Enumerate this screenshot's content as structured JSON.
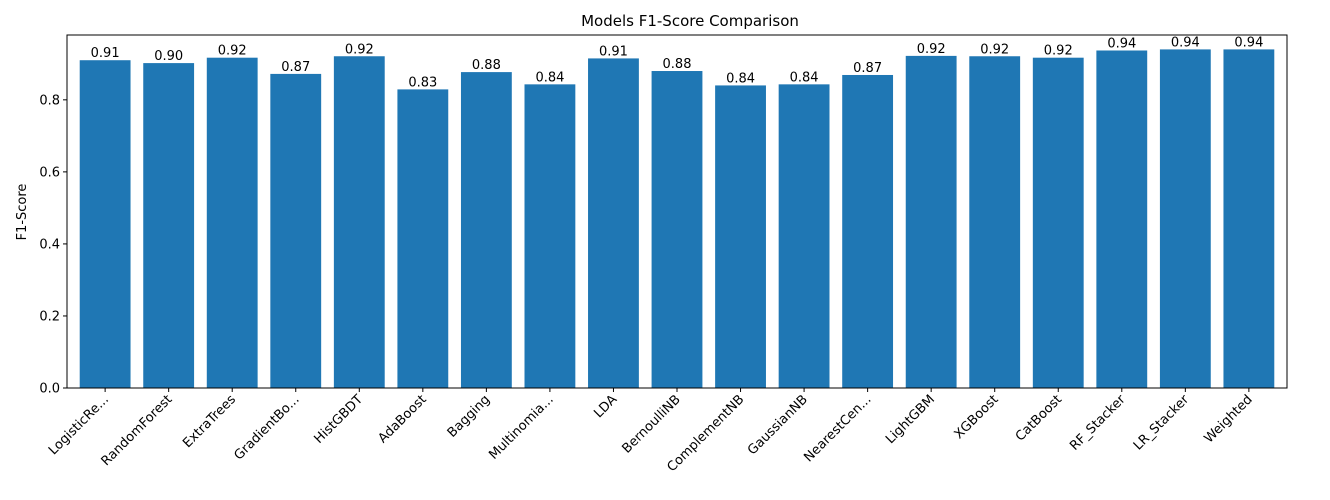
{
  "chart_data": {
    "type": "bar",
    "title": "Models F1-Score Comparison",
    "xlabel": "",
    "ylabel": "F1-Score",
    "ylim": [
      0,
      0.98
    ],
    "yticks": [
      0.0,
      0.2,
      0.4,
      0.6,
      0.8
    ],
    "ytick_labels": [
      "0.0",
      "0.2",
      "0.4",
      "0.6",
      "0.8"
    ],
    "grid": false,
    "bar_color": "#1f77b4",
    "categories": [
      "LogisticRe...",
      "RandomForest",
      "ExtraTrees",
      "GradientBo...",
      "HistGBDT",
      "AdaBoost",
      "Bagging",
      "Multinomia...",
      "LDA",
      "BernoulliNB",
      "ComplementNB",
      "GaussianNB",
      "NearestCen...",
      "LightGBM",
      "XGBoost",
      "CatBoost",
      "RF_Stacker",
      "LR_Stacker",
      "Weighted"
    ],
    "values": [
      0.91,
      0.902,
      0.917,
      0.872,
      0.921,
      0.829,
      0.877,
      0.843,
      0.915,
      0.88,
      0.84,
      0.843,
      0.869,
      0.922,
      0.921,
      0.917,
      0.937,
      0.94,
      0.94
    ],
    "value_labels": [
      "0.91",
      "0.90",
      "0.92",
      "0.87",
      "0.92",
      "0.83",
      "0.88",
      "0.84",
      "0.91",
      "0.88",
      "0.84",
      "0.84",
      "0.87",
      "0.92",
      "0.92",
      "0.92",
      "0.94",
      "0.94",
      "0.94"
    ]
  }
}
